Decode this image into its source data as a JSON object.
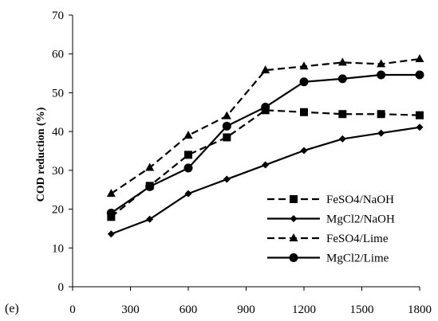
{
  "panel_label": "(e)",
  "chart_data": {
    "type": "line",
    "title": "",
    "xlabel": "",
    "ylabel": "COD reduction (%)",
    "xlim": [
      0,
      1800
    ],
    "ylim": [
      0,
      70
    ],
    "x_ticks": [
      0,
      300,
      600,
      900,
      1200,
      1500,
      1800
    ],
    "y_ticks": [
      0,
      10,
      20,
      30,
      40,
      50,
      60,
      70
    ],
    "grid": false,
    "legend_position": "lower-right",
    "series": [
      {
        "name": "FeSO4/NaOH",
        "line_style": "dashed",
        "marker": "square",
        "x": [
          200,
          400,
          600,
          800,
          1000,
          1200,
          1400,
          1600,
          1800
        ],
        "y": [
          18,
          26,
          34,
          38.5,
          45.5,
          45,
          44.5,
          44.5,
          44.2
        ]
      },
      {
        "name": "MgCl2/NaOH",
        "line_style": "solid",
        "marker": "diamond",
        "x": [
          200,
          400,
          600,
          800,
          1000,
          1200,
          1400,
          1600,
          1800
        ],
        "y": [
          13.6,
          17.4,
          24,
          27.7,
          31.4,
          35.1,
          38.1,
          39.6,
          41.1
        ]
      },
      {
        "name": "FeSO4/Lime",
        "line_style": "dashed",
        "marker": "triangle",
        "x": [
          200,
          400,
          600,
          800,
          1000,
          1200,
          1400,
          1600,
          1800
        ],
        "y": [
          24,
          30.7,
          39,
          44,
          55.8,
          56.8,
          57.8,
          57.4,
          58.7
        ]
      },
      {
        "name": "MgCl2/Lime",
        "line_style": "solid",
        "marker": "circle",
        "x": [
          200,
          400,
          600,
          800,
          1000,
          1200,
          1400,
          1600,
          1800
        ],
        "y": [
          19,
          25.8,
          30.6,
          41.4,
          46.3,
          52.8,
          53.6,
          54.6,
          54.6
        ]
      }
    ]
  }
}
